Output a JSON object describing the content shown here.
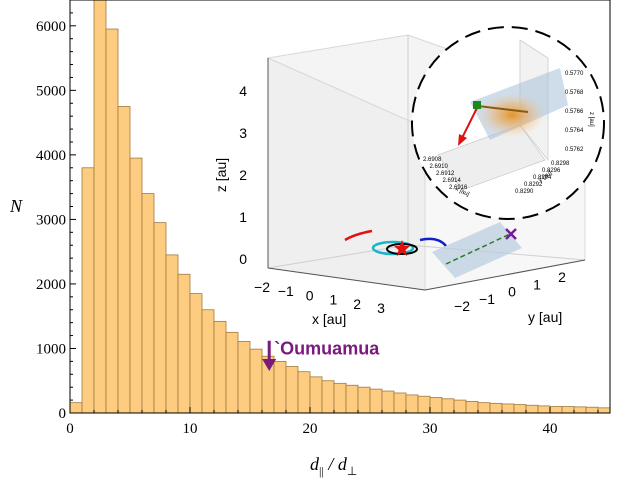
{
  "chart_data": {
    "type": "bar",
    "xlabel_main": "d",
    "xlabel_sub1": "||",
    "xlabel_mid": " / d",
    "xlabel_sub2": "⊥",
    "ylabel": "N",
    "xlim": [
      0,
      45
    ],
    "ylim": [
      0,
      6400
    ],
    "bin_width": 1,
    "x_ticks": [
      0,
      10,
      20,
      30,
      40
    ],
    "y_ticks": [
      0,
      1000,
      2000,
      3000,
      4000,
      5000,
      6000
    ],
    "bar_color": "#fdcc80",
    "bar_edge_color": "#a07a3a",
    "values": [
      160,
      3800,
      6400,
      5950,
      4750,
      3950,
      3400,
      2950,
      2450,
      2150,
      1850,
      1600,
      1420,
      1250,
      1110,
      990,
      880,
      800,
      720,
      640,
      560,
      500,
      460,
      430,
      400,
      370,
      340,
      310,
      280,
      260,
      240,
      220,
      200,
      180,
      160,
      150,
      140,
      130,
      120,
      110,
      100,
      100,
      95,
      90,
      80
    ],
    "annotation": {
      "text": "`Oumuamua",
      "x": 16.6,
      "y_arrow_start": 1120,
      "y_arrow_end": 650,
      "color": "#7a1a7a"
    },
    "inset": {
      "x_label": "x [au]",
      "y_label": "y [au]",
      "z_label": "z [au]",
      "x_ticks": [
        "−2",
        "−1",
        "0",
        "1",
        "2",
        "3"
      ],
      "y_ticks": [
        "−2",
        "−1",
        "0",
        "1",
        "2"
      ],
      "z_ticks": [
        "0",
        "1",
        "2",
        "3",
        "4"
      ],
      "zoom": {
        "x_label": "x [au]",
        "y_label": "y [au]",
        "z_label": "z [au]",
        "x_ticks": [
          "2.6908",
          "2.6910",
          "2.6912",
          "2.6914",
          "2.6916"
        ],
        "y_ticks": [
          "0.8290",
          "0.8292",
          "0.8294",
          "0.8296",
          "0.8298"
        ],
        "z_ticks": [
          "0.5770",
          "0.5768",
          "0.5766",
          "0.5764",
          "0.5762"
        ]
      }
    }
  }
}
